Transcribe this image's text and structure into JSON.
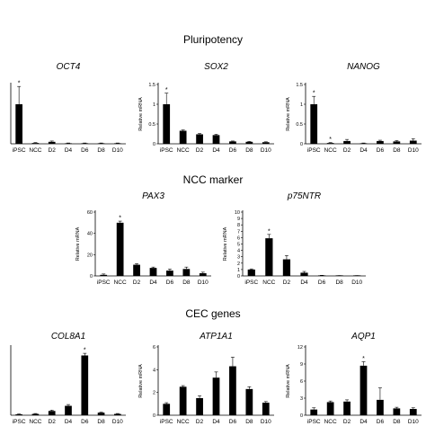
{
  "sections": [
    {
      "title": "Pluripotency"
    },
    {
      "title": "NCC marker"
    },
    {
      "title": "CEC genes"
    }
  ],
  "chart_data": [
    {
      "type": "bar",
      "title": "OCT4",
      "ylabel": "",
      "categories": [
        "iPSC",
        "NCC",
        "D2",
        "D4",
        "D6",
        "D8",
        "D10"
      ],
      "values": [
        1.0,
        0.02,
        0.05,
        0.01,
        0.01,
        0.01,
        0.01
      ],
      "errors": [
        0.45,
        0.01,
        0.02,
        0.01,
        0.01,
        0.01,
        0.01
      ],
      "ylim": [
        0,
        1.5
      ],
      "yticks": [],
      "significant": [
        "iPSC"
      ]
    },
    {
      "type": "bar",
      "title": "SOX2",
      "ylabel": "Relative mRNA",
      "categories": [
        "iPSC",
        "NCC",
        "D2",
        "D4",
        "D6",
        "D8",
        "D10"
      ],
      "values": [
        1.0,
        0.33,
        0.24,
        0.22,
        0.06,
        0.05,
        0.04
      ],
      "errors": [
        0.28,
        0.02,
        0.02,
        0.02,
        0.01,
        0.01,
        0.01
      ],
      "ylim": [
        0,
        1.5
      ],
      "yticks": [
        "0",
        "0.5",
        "1",
        "1.5"
      ],
      "significant": [
        "iPSC"
      ]
    },
    {
      "type": "bar",
      "title": "NANOG",
      "ylabel": "Relative mRNA",
      "categories": [
        "iPSC",
        "NCC",
        "D2",
        "D4",
        "D6",
        "D8",
        "D10"
      ],
      "values": [
        1.0,
        0.02,
        0.07,
        0.01,
        0.07,
        0.06,
        0.08
      ],
      "errors": [
        0.2,
        0.01,
        0.04,
        0.01,
        0.02,
        0.02,
        0.05
      ],
      "ylim": [
        0,
        1.5
      ],
      "yticks": [
        "0",
        "0.5",
        "1",
        "1.5"
      ],
      "significant": [
        "iPSC",
        "NCC"
      ]
    },
    {
      "type": "bar",
      "title": "PAX3",
      "ylabel": "Relative mRNA",
      "categories": [
        "iPSC",
        "NCC",
        "D2",
        "D4",
        "D6",
        "D8",
        "D10"
      ],
      "values": [
        1.0,
        50.0,
        10.5,
        7.5,
        5.0,
        6.5,
        2.5
      ],
      "errors": [
        0.8,
        1.5,
        1.0,
        0.8,
        1.5,
        1.8,
        1.0
      ],
      "ylim": [
        0,
        60
      ],
      "yticks": [
        "0",
        "20",
        "40",
        "60"
      ],
      "significant": [
        "NCC"
      ]
    },
    {
      "type": "bar",
      "title": "p75NTR",
      "ylabel": "Relative mRNA",
      "categories": [
        "iPSC",
        "NCC",
        "D2",
        "D4",
        "D6",
        "D8",
        "D10"
      ],
      "values": [
        1.0,
        5.9,
        2.6,
        0.5,
        0.05,
        0.03,
        0.03
      ],
      "errors": [
        0.1,
        0.6,
        0.6,
        0.2,
        0.05,
        0.02,
        0.02
      ],
      "ylim": [
        0,
        10
      ],
      "yticks": [
        "0",
        "1",
        "2",
        "3",
        "4",
        "5",
        "6",
        "7",
        "8",
        "9",
        "10"
      ],
      "significant": [
        "NCC"
      ]
    },
    {
      "type": "bar",
      "title": "COL8A1",
      "ylabel": "",
      "categories": [
        "iPSC",
        "NCC",
        "D2",
        "D4",
        "D6",
        "D8",
        "D10"
      ],
      "values": [
        0.2,
        0.3,
        1.0,
        2.2,
        14.0,
        0.6,
        0.3
      ],
      "errors": [
        0.1,
        0.1,
        0.2,
        0.3,
        0.5,
        0.1,
        0.1
      ],
      "ylim": [
        0,
        16
      ],
      "yticks": [],
      "significant": [
        "D6"
      ]
    },
    {
      "type": "bar",
      "title": "ATP1A1",
      "ylabel": "Relative mRNA",
      "categories": [
        "iPSC",
        "NCC",
        "D2",
        "D4",
        "D6",
        "D8",
        "D10"
      ],
      "values": [
        1.0,
        2.5,
        1.5,
        3.3,
        4.3,
        2.3,
        1.1
      ],
      "errors": [
        0.1,
        0.1,
        0.2,
        0.5,
        0.8,
        0.2,
        0.1
      ],
      "ylim": [
        0,
        6
      ],
      "yticks": [
        "0",
        "2",
        "4",
        "6"
      ],
      "significant": []
    },
    {
      "type": "bar",
      "title": "AQP1",
      "ylabel": "Relative mRNA",
      "categories": [
        "iPSC",
        "NCC",
        "D2",
        "D4",
        "D6",
        "D8",
        "D10"
      ],
      "values": [
        1.0,
        2.3,
        2.4,
        8.7,
        2.7,
        1.2,
        1.1
      ],
      "errors": [
        0.3,
        0.2,
        0.3,
        0.7,
        2.1,
        0.2,
        0.2
      ],
      "ylim": [
        0,
        12
      ],
      "yticks": [
        "0",
        "3",
        "6",
        "9",
        "12"
      ],
      "significant": [
        "D4"
      ]
    }
  ]
}
